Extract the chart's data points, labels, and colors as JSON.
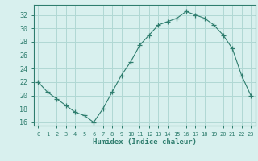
{
  "x": [
    0,
    1,
    2,
    3,
    4,
    5,
    6,
    7,
    8,
    9,
    10,
    11,
    12,
    13,
    14,
    15,
    16,
    17,
    18,
    19,
    20,
    21,
    22,
    23
  ],
  "y": [
    22,
    20.5,
    19.5,
    18.5,
    17.5,
    17,
    16,
    18,
    20.5,
    23,
    25,
    27.5,
    29,
    30.5,
    31,
    31.5,
    32.5,
    32,
    31.5,
    30.5,
    29,
    27,
    23,
    20
  ],
  "line_color": "#2e7d6e",
  "marker": "+",
  "marker_size": 4,
  "bg_color": "#d8f0ee",
  "grid_color": "#b0d8d4",
  "xlabel": "Humidex (Indice chaleur)",
  "xlim": [
    -0.5,
    23.5
  ],
  "ylim": [
    15.5,
    33.5
  ],
  "yticks": [
    16,
    18,
    20,
    22,
    24,
    26,
    28,
    30,
    32
  ],
  "xtick_labels": [
    "0",
    "1",
    "2",
    "3",
    "4",
    "5",
    "6",
    "7",
    "8",
    "9",
    "10",
    "11",
    "12",
    "13",
    "14",
    "15",
    "16",
    "17",
    "18",
    "19",
    "20",
    "21",
    "22",
    "23"
  ],
  "tick_color": "#2e7d6e",
  "axis_color": "#2e7d6e",
  "xlabel_fontsize": 6.5,
  "ytick_fontsize": 6.0,
  "xtick_fontsize": 5.0
}
